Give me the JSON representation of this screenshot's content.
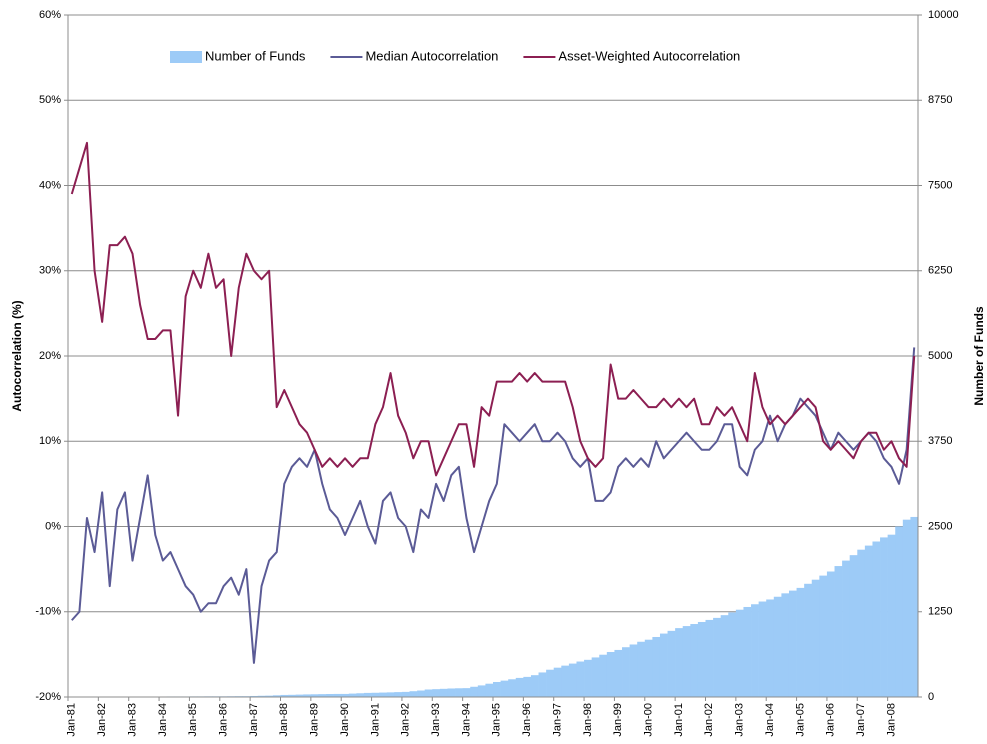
{
  "chart_data": {
    "type": "combo",
    "y_label": "Autocorrelation (%)",
    "y2_label": "Number of Funds",
    "categories": [
      "Jan-81",
      null,
      null,
      null,
      "Jan-82",
      null,
      null,
      null,
      "Jan-83",
      null,
      null,
      null,
      "Jan-84",
      null,
      null,
      null,
      "Jan-85",
      null,
      null,
      null,
      "Jan-86",
      null,
      null,
      null,
      "Jan-87",
      null,
      null,
      null,
      "Jan-88",
      null,
      null,
      null,
      "Jan-89",
      null,
      null,
      null,
      "Jan-90",
      null,
      null,
      null,
      "Jan-91",
      null,
      null,
      null,
      "Jan-92",
      null,
      null,
      null,
      "Jan-93",
      null,
      null,
      null,
      "Jan-94",
      null,
      null,
      null,
      "Jan-95",
      null,
      null,
      null,
      "Jan-96",
      null,
      null,
      null,
      "Jan-97",
      null,
      null,
      null,
      "Jan-98",
      null,
      null,
      null,
      "Jan-99",
      null,
      null,
      null,
      "Jan-00",
      null,
      null,
      null,
      "Jan-01",
      null,
      null,
      null,
      "Jan-02",
      null,
      null,
      null,
      "Jan-03",
      null,
      null,
      null,
      "Jan-04",
      null,
      null,
      null,
      "Jan-05",
      null,
      null,
      null,
      "Jan-06",
      null,
      null,
      null,
      "Jan-07",
      null,
      null,
      null,
      "Jan-08",
      null,
      null,
      null
    ],
    "series": [
      {
        "name": "Number of Funds",
        "type": "bar",
        "axis": "y2",
        "color": "#9dcbf7",
        "values": [
          5,
          5,
          5,
          5,
          5,
          5,
          6,
          6,
          6,
          6,
          7,
          7,
          7,
          8,
          8,
          8,
          9,
          9,
          10,
          10,
          10,
          11,
          12,
          12,
          15,
          18,
          20,
          25,
          30,
          32,
          35,
          38,
          40,
          42,
          44,
          45,
          45,
          50,
          55,
          60,
          62,
          65,
          68,
          72,
          75,
          85,
          95,
          110,
          115,
          120,
          125,
          128,
          130,
          150,
          170,
          195,
          220,
          240,
          260,
          280,
          295,
          320,
          360,
          400,
          430,
          460,
          490,
          520,
          545,
          580,
          620,
          660,
          690,
          730,
          770,
          810,
          840,
          880,
          930,
          970,
          1010,
          1040,
          1070,
          1100,
          1130,
          1160,
          1200,
          1240,
          1280,
          1320,
          1360,
          1400,
          1430,
          1470,
          1520,
          1560,
          1600,
          1660,
          1720,
          1780,
          1840,
          1920,
          2000,
          2080,
          2160,
          2220,
          2280,
          2340,
          2380,
          2500,
          2600,
          2640
        ]
      },
      {
        "name": "Median Autocorrelation",
        "type": "line",
        "color": "#5b5b96",
        "values": [
          -11,
          -10,
          1,
          -3,
          4,
          -7,
          2,
          4,
          -4,
          1,
          6,
          -1,
          -4,
          -3,
          -5,
          -7,
          -8,
          -10,
          -9,
          -9,
          -7,
          -6,
          -8,
          -5,
          -16,
          -7,
          -4,
          -3,
          5,
          7,
          8,
          7,
          9,
          5,
          2,
          1,
          -1,
          1,
          3,
          0,
          -2,
          3,
          4,
          1,
          0,
          -3,
          2,
          1,
          5,
          3,
          6,
          7,
          1,
          -3,
          0,
          3,
          5,
          12,
          11,
          10,
          11,
          12,
          10,
          10,
          11,
          10,
          8,
          7,
          8,
          3,
          3,
          4,
          7,
          8,
          7,
          8,
          7,
          10,
          8,
          9,
          10,
          11,
          10,
          9,
          9,
          10,
          12,
          12,
          7,
          6,
          9,
          10,
          13,
          10,
          12,
          13,
          15,
          14,
          13,
          11,
          9,
          11,
          10,
          9,
          10,
          11,
          10,
          8,
          7,
          5,
          9,
          21
        ]
      },
      {
        "name": "Asset-Weighted Autocorrelation",
        "type": "line",
        "color": "#8c1f52",
        "values": [
          39,
          42,
          45,
          30,
          24,
          33,
          33,
          34,
          32,
          26,
          22,
          22,
          23,
          23,
          13,
          27,
          30,
          28,
          32,
          28,
          29,
          20,
          28,
          32,
          30,
          29,
          30,
          14,
          16,
          14,
          12,
          11,
          9,
          7,
          8,
          7,
          8,
          7,
          8,
          8,
          12,
          14,
          18,
          13,
          11,
          8,
          10,
          10,
          6,
          8,
          10,
          12,
          12,
          7,
          14,
          13,
          17,
          17,
          17,
          18,
          17,
          18,
          17,
          17,
          17,
          17,
          14,
          10,
          8,
          7,
          8,
          19,
          15,
          15,
          16,
          15,
          14,
          14,
          15,
          14,
          15,
          14,
          15,
          12,
          12,
          14,
          13,
          14,
          12,
          10,
          18,
          14,
          12,
          13,
          12,
          13,
          14,
          15,
          14,
          10,
          9,
          10,
          9,
          8,
          10,
          11,
          11,
          9,
          10,
          8,
          7,
          20
        ]
      }
    ],
    "ylim": [
      -20,
      60
    ],
    "yticks": [
      {
        "value": -20,
        "label": "-20%"
      },
      {
        "value": -10,
        "label": "-10%"
      },
      {
        "value": 0,
        "label": "0%"
      },
      {
        "value": 10,
        "label": "10%"
      },
      {
        "value": 20,
        "label": "20%"
      },
      {
        "value": 30,
        "label": "30%"
      },
      {
        "value": 40,
        "label": "40%"
      },
      {
        "value": 50,
        "label": "50%"
      },
      {
        "value": 60,
        "label": "60%"
      }
    ],
    "y2lim": [
      0,
      10000
    ],
    "y2ticks": [
      0,
      1250,
      2500,
      3750,
      5000,
      6250,
      7500,
      8750,
      10000
    ],
    "grid": true,
    "legend": "top"
  }
}
